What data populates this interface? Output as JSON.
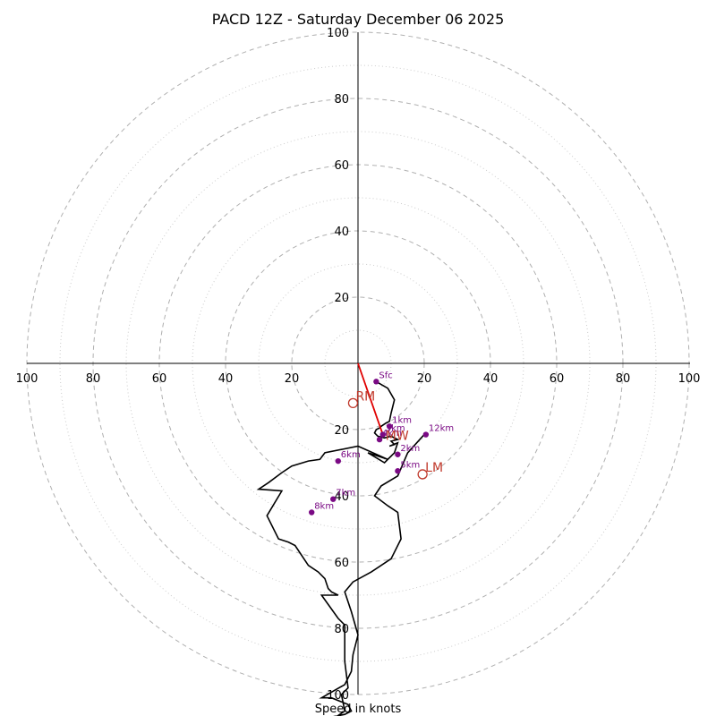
{
  "chart_data": {
    "type": "scatter",
    "subtype": "hodograph",
    "title": "PACD 12Z - Saturday December 06 2025",
    "xlabel": "Speed in knots",
    "axis_range": [
      -100,
      100
    ],
    "rings_major": [
      20,
      40,
      60,
      80,
      100
    ],
    "rings_minor": [
      10,
      30,
      50,
      70,
      90
    ],
    "tick_labels": {
      "left": [
        "100",
        "80",
        "60",
        "40",
        "20"
      ],
      "right": [
        "20",
        "40",
        "60",
        "80",
        "100"
      ],
      "top": [
        "20",
        "40",
        "60",
        "80",
        "100"
      ],
      "bottom": [
        "20",
        "40",
        "60",
        "80",
        "100"
      ]
    },
    "trace": {
      "u": [
        5.5,
        9,
        11,
        10,
        9.5,
        8.5,
        7,
        6.5,
        5.5,
        5.0,
        6.0,
        8,
        10,
        12,
        10,
        11,
        9.5,
        12,
        11,
        8,
        3,
        9,
        0,
        -10,
        -11.5,
        -15,
        -20,
        -23,
        -27,
        -30,
        -23,
        -27.5,
        -24,
        -21,
        -19,
        -15,
        -12,
        -10,
        -9,
        -8,
        -6,
        -11,
        -6,
        -4,
        -4,
        -3,
        -5,
        -4,
        -7,
        -14,
        -4,
        -2,
        -3,
        -8,
        -11,
        -4,
        -2,
        -1.5,
        0,
        -2,
        -4,
        -1.5,
        4,
        10,
        13,
        12,
        9,
        5,
        7,
        12,
        15,
        20
      ],
      "v": [
        -5.5,
        -7.5,
        -11,
        -15,
        -17.5,
        -18,
        -19,
        -19.5,
        -20,
        -21,
        -22,
        -22.5,
        -22,
        -23,
        -23.5,
        -24.5,
        -25,
        -24,
        -27,
        -30,
        -27,
        -29,
        -25,
        -27,
        -29,
        -29.5,
        -31,
        -33,
        -36,
        -38,
        -38.5,
        -46,
        -53,
        -54,
        -55,
        -61,
        -63,
        -65,
        -68,
        -69,
        -70,
        -70,
        -77,
        -79,
        -90,
        -98,
        -100,
        -105,
        -107,
        -108,
        -106,
        -105,
        -103,
        -101,
        -101,
        -97,
        -93,
        -88,
        -82,
        -75,
        -69,
        -66,
        -63,
        -59,
        -53,
        -45,
        -43,
        -40,
        -37,
        -34,
        -27,
        -21.5
      ]
    },
    "levels": [
      {
        "label": "Sfc",
        "u": 5.5,
        "v": -5.5
      },
      {
        "label": "1km",
        "u": 9.5,
        "v": -19
      },
      {
        "label": "3km",
        "u": 7.5,
        "v": -21.5
      },
      {
        "label": "4km",
        "u": 6.5,
        "v": -23
      },
      {
        "label": "2km",
        "u": 12,
        "v": -27.5
      },
      {
        "label": "5km",
        "u": 12,
        "v": -32.5
      },
      {
        "label": "12km",
        "u": 20.5,
        "v": -21.5
      },
      {
        "label": "6km",
        "u": -6,
        "v": -29.5
      },
      {
        "label": "7km",
        "u": -7.5,
        "v": -41
      },
      {
        "label": "8km",
        "u": -14,
        "v": -45
      }
    ],
    "storm_motion": [
      {
        "label": "RM",
        "u": -1.5,
        "v": -12
      },
      {
        "label": "LM",
        "u": 19.5,
        "v": -33.5
      }
    ],
    "mean_wind": {
      "label": "MW",
      "u": 7.5,
      "v": -21.5
    }
  }
}
